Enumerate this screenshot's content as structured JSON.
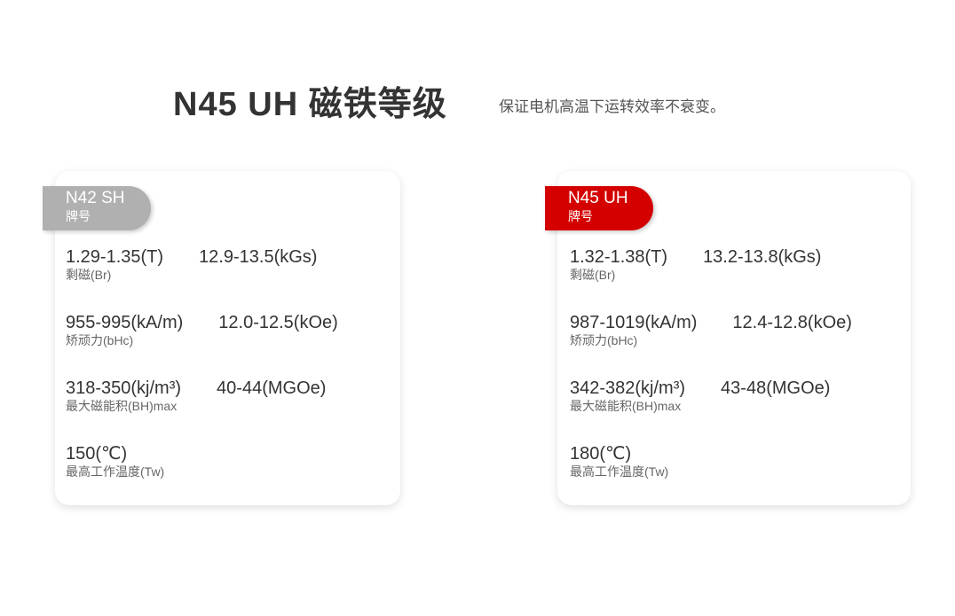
{
  "header": {
    "title": "N45 UH 磁铁等级",
    "subtitle": "保证电机高温下运转效率不衰变。"
  },
  "colors": {
    "left_badge": "#b0b0b0",
    "right_badge": "#d40000"
  },
  "cards": [
    {
      "grade": "N42 SH",
      "grade_label": "牌号",
      "rows": [
        {
          "v1": "1.29-1.35(T)",
          "v2": "12.9-13.5(kGs)",
          "label": "剩磁(Br)"
        },
        {
          "v1": "955-995(kA/m)",
          "v2": "12.0-12.5(kOe)",
          "label": "矫顽力(bHc)"
        },
        {
          "v1": "318-350(kj/m³)",
          "v2": "40-44(MGOe)",
          "label": "最大磁能积(BH)max"
        },
        {
          "v1": "150(℃)",
          "v2": "",
          "label": "最高工作温度(Tw)"
        }
      ]
    },
    {
      "grade": "N45 UH",
      "grade_label": "牌号",
      "rows": [
        {
          "v1": "1.32-1.38(T)",
          "v2": "13.2-13.8(kGs)",
          "label": "剩磁(Br)"
        },
        {
          "v1": "987-1019(kA/m)",
          "v2": "12.4-12.8(kOe)",
          "label": "矫顽力(bHc)"
        },
        {
          "v1": "342-382(kj/m³)",
          "v2": "43-48(MGOe)",
          "label": "最大磁能积(BH)max"
        },
        {
          "v1": "180(℃)",
          "v2": "",
          "label": "最高工作温度(Tw)"
        }
      ]
    }
  ]
}
